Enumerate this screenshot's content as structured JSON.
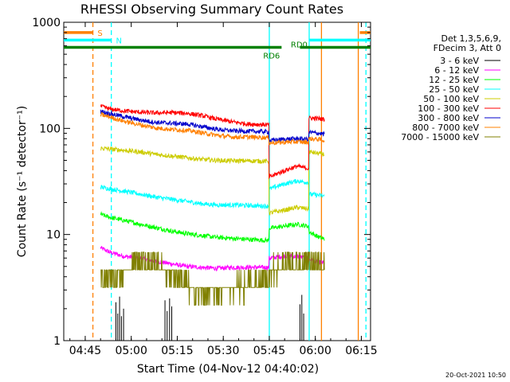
{
  "chart_data": {
    "type": "line",
    "title": "RHESSI Observing Summary Count Rates",
    "xlabel": "Start Time (04-Nov-12 04:40:02)",
    "ylabel": "Count Rate (s⁻¹ detector⁻¹)",
    "y_scale": "log",
    "ylim": [
      1,
      1000
    ],
    "xlim_minutes_after_0440": [
      0,
      100
    ],
    "x_ticks": [
      {
        "t": 7,
        "label": "04:45"
      },
      {
        "t": 22,
        "label": "05:00"
      },
      {
        "t": 37,
        "label": "05:15"
      },
      {
        "t": 52,
        "label": "05:30"
      },
      {
        "t": 67,
        "label": "05:45"
      },
      {
        "t": 82,
        "label": "06:00"
      },
      {
        "t": 97,
        "label": "06:15"
      }
    ],
    "y_ticks": [
      {
        "v": 1,
        "label": "1"
      },
      {
        "v": 10,
        "label": "10"
      },
      {
        "v": 100,
        "label": "100"
      },
      {
        "v": 1000,
        "label": "1000"
      }
    ],
    "legend_header": [
      "Det 1,3,5,6,9,",
      "FDecim 3, Att 0"
    ],
    "legend_placement": "right",
    "series": [
      {
        "name": "3 - 6 keV",
        "color": "#000000",
        "spikes": [
          [
            17,
            2.3
          ],
          [
            17.6,
            1.8
          ],
          [
            18.2,
            2.6
          ],
          [
            18.8,
            1.7
          ],
          [
            19.5,
            2.0
          ],
          [
            33,
            2.4
          ],
          [
            33.7,
            1.9
          ],
          [
            34.5,
            2.5
          ],
          [
            35.2,
            2.1
          ],
          [
            77,
            2.2
          ],
          [
            77.6,
            2.7
          ],
          [
            78.2,
            1.8
          ]
        ]
      },
      {
        "name": "6 - 12 keV",
        "color": "#ff00ff",
        "points": [
          [
            12,
            7.5
          ],
          [
            15,
            6.8
          ],
          [
            20,
            6.2
          ],
          [
            25,
            6.0
          ],
          [
            30,
            5.6
          ],
          [
            35,
            5.3
          ],
          [
            40,
            5.0
          ],
          [
            45,
            4.9
          ],
          [
            50,
            4.8
          ],
          [
            55,
            4.9
          ],
          [
            60,
            4.9
          ],
          [
            66.5,
            4.9
          ],
          [
            67.3,
            6.0
          ],
          [
            72,
            6.3
          ],
          [
            76,
            6.2
          ],
          [
            79.5,
            6.0
          ],
          [
            80.2,
            5.8
          ],
          [
            83,
            5.5
          ],
          [
            85,
            5.4
          ]
        ]
      },
      {
        "name": "12 - 25 keV",
        "color": "#00ff00",
        "points": [
          [
            12,
            15.5
          ],
          [
            15,
            14.5
          ],
          [
            20,
            13.5
          ],
          [
            25,
            12.5
          ],
          [
            30,
            11.6
          ],
          [
            35,
            10.8
          ],
          [
            40,
            10.2
          ],
          [
            45,
            9.8
          ],
          [
            50,
            9.4
          ],
          [
            55,
            9.2
          ],
          [
            60,
            9.0
          ],
          [
            66.5,
            8.8
          ],
          [
            67.3,
            11.5
          ],
          [
            72,
            12.0
          ],
          [
            76,
            12.5
          ],
          [
            79.5,
            12.0
          ],
          [
            80.2,
            10.5
          ],
          [
            83,
            9.5
          ],
          [
            85,
            9.0
          ]
        ]
      },
      {
        "name": "25 - 50 keV",
        "color": "#00ffff",
        "points": [
          [
            12,
            28
          ],
          [
            15,
            27
          ],
          [
            20,
            25.5
          ],
          [
            25,
            24
          ],
          [
            30,
            22.5
          ],
          [
            35,
            21.5
          ],
          [
            40,
            20.5
          ],
          [
            45,
            19.5
          ],
          [
            50,
            19.0
          ],
          [
            55,
            19.0
          ],
          [
            60,
            18.8
          ],
          [
            66.5,
            18.5
          ],
          [
            67.3,
            27
          ],
          [
            72,
            30
          ],
          [
            76,
            32
          ],
          [
            79.5,
            31
          ],
          [
            80.2,
            24
          ],
          [
            83,
            23.5
          ],
          [
            85,
            23
          ]
        ]
      },
      {
        "name": "50 - 100 keV",
        "color": "#cccc00",
        "points": [
          [
            12,
            65
          ],
          [
            15,
            64
          ],
          [
            20,
            62
          ],
          [
            25,
            60
          ],
          [
            30,
            57
          ],
          [
            35,
            55
          ],
          [
            40,
            53
          ],
          [
            45,
            51
          ],
          [
            50,
            50
          ],
          [
            55,
            49.5
          ],
          [
            60,
            49.5
          ],
          [
            66.5,
            49
          ],
          [
            67.3,
            16
          ],
          [
            72,
            17
          ],
          [
            76,
            18
          ],
          [
            79.5,
            17.5
          ],
          [
            80.2,
            60
          ],
          [
            83,
            58
          ],
          [
            85,
            57
          ]
        ]
      },
      {
        "name": "100 - 300 keV",
        "color": "#ff0000",
        "points": [
          [
            12,
            162
          ],
          [
            15,
            152
          ],
          [
            20,
            146
          ],
          [
            25,
            142
          ],
          [
            30,
            140
          ],
          [
            35,
            141
          ],
          [
            40,
            139
          ],
          [
            45,
            132
          ],
          [
            50,
            122
          ],
          [
            55,
            115
          ],
          [
            60,
            110
          ],
          [
            66.5,
            108
          ],
          [
            67.3,
            35
          ],
          [
            70,
            38
          ],
          [
            72,
            40
          ],
          [
            76,
            44
          ],
          [
            79.5,
            42
          ],
          [
            80.2,
            125
          ],
          [
            83,
            124
          ],
          [
            85,
            122
          ]
        ]
      },
      {
        "name": "300 - 800 keV",
        "color": "#0000cc",
        "points": [
          [
            12,
            145
          ],
          [
            15,
            138
          ],
          [
            20,
            128
          ],
          [
            25,
            120
          ],
          [
            30,
            114
          ],
          [
            35,
            112
          ],
          [
            40,
            110
          ],
          [
            45,
            104
          ],
          [
            50,
            98
          ],
          [
            55,
            95
          ],
          [
            60,
            94
          ],
          [
            66.5,
            93
          ],
          [
            67.3,
            77
          ],
          [
            72,
            79
          ],
          [
            76,
            80
          ],
          [
            79.5,
            79
          ],
          [
            80.2,
            92
          ],
          [
            83,
            90
          ],
          [
            85,
            88
          ]
        ]
      },
      {
        "name": "800 - 7000 keV",
        "color": "#ff8000",
        "points": [
          [
            12,
            135
          ],
          [
            15,
            128
          ],
          [
            20,
            116
          ],
          [
            25,
            108
          ],
          [
            30,
            101
          ],
          [
            35,
            98
          ],
          [
            40,
            96
          ],
          [
            45,
            91
          ],
          [
            50,
            86
          ],
          [
            55,
            83
          ],
          [
            60,
            83
          ],
          [
            66.5,
            82
          ],
          [
            67.3,
            73
          ],
          [
            72,
            74
          ],
          [
            76,
            75
          ],
          [
            79.5,
            74
          ],
          [
            80.2,
            80
          ],
          [
            83,
            79
          ],
          [
            85,
            77
          ]
        ]
      },
      {
        "name": "7000 - 15000 keV",
        "color": "#808000",
        "points": [
          [
            12,
            3.6
          ],
          [
            14,
            4.0
          ],
          [
            17,
            4.2
          ],
          [
            20,
            4.5
          ],
          [
            23,
            5.2
          ],
          [
            26,
            5.6
          ],
          [
            29,
            5.6
          ],
          [
            32,
            4.8
          ],
          [
            35,
            4.2
          ],
          [
            38,
            3.8
          ],
          [
            41,
            3.2
          ],
          [
            44,
            2.8
          ],
          [
            47,
            2.7
          ],
          [
            50,
            2.9
          ],
          [
            53,
            3.2
          ],
          [
            56,
            3.3
          ],
          [
            59,
            3.3
          ],
          [
            62,
            3.5
          ],
          [
            66.5,
            3.6
          ],
          [
            67.3,
            4.5
          ],
          [
            72,
            5.0
          ],
          [
            76,
            5.5
          ],
          [
            79.5,
            5.8
          ],
          [
            80.2,
            5.5
          ],
          [
            83,
            5.0
          ],
          [
            85,
            4.8
          ]
        ]
      }
    ],
    "annotations": {
      "vertical_lines": [
        {
          "t": 9.5,
          "color": "#ff8000",
          "style": "dashed"
        },
        {
          "t": 15.5,
          "color": "#00ffff",
          "style": "dashed"
        },
        {
          "t": 67.0,
          "color": "#00ffff",
          "style": "solid"
        },
        {
          "t": 80.0,
          "color": "#00ffff",
          "style": "solid"
        },
        {
          "t": 84.0,
          "color": "#ff8000",
          "style": "solid"
        },
        {
          "t": 96.0,
          "color": "#ff8000",
          "style": "solid"
        },
        {
          "t": 98.5,
          "color": "#00ffff",
          "style": "dashed"
        }
      ],
      "flag_bars": [
        {
          "label": "S",
          "color": "#ff8000",
          "y": 800,
          "segments": [
            [
              0,
              9.5
            ],
            [
              96.5,
              100
            ]
          ]
        },
        {
          "label": "N",
          "color": "#00ffff",
          "y": 680,
          "segments": [
            [
              0,
              15.5
            ],
            [
              80,
              100
            ]
          ]
        },
        {
          "label": "RD0",
          "color": "#008000",
          "y": 580,
          "segments": [
            [
              0,
              71
            ],
            [
              77,
              100
            ]
          ]
        }
      ],
      "flag_labels": [
        {
          "text": "S",
          "color": "#ff8000",
          "t": 11,
          "y": 800
        },
        {
          "text": "N",
          "color": "#00ffff",
          "t": 17,
          "y": 680
        },
        {
          "text": "RD0",
          "color": "#008000",
          "t": 74,
          "y": 620
        },
        {
          "text": "RD6",
          "color": "#008000",
          "t": 65,
          "y": 490
        }
      ]
    },
    "timestamp": "20-Oct-2021 10:50"
  }
}
